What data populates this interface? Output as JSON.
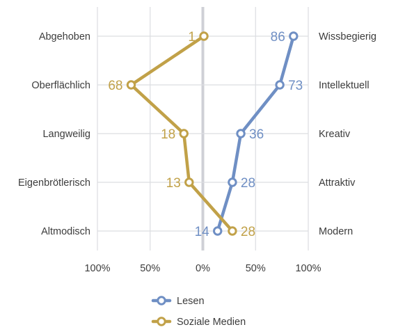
{
  "chart_data": {
    "type": "line",
    "left_labels": [
      "Abgehoben",
      "Oberflächlich",
      "Langweilig",
      "Eigenbrötlerisch",
      "Altmodisch"
    ],
    "right_labels": [
      "Wissbegierig",
      "Intellektuell",
      "Kreativ",
      "Attraktiv",
      "Modern"
    ],
    "x_ticks": [
      "100%",
      "50%",
      "0%",
      "50%",
      "100%"
    ],
    "xlim": [
      -100,
      100
    ],
    "series": [
      {
        "name": "Lesen",
        "color": "#6f8fc4",
        "signed_values": [
          86,
          73,
          36,
          28,
          14
        ],
        "labels": [
          "86",
          "73",
          "36",
          "28",
          "14"
        ],
        "label_side": [
          "left",
          "right",
          "right",
          "right",
          "left"
        ]
      },
      {
        "name": "Soziale Medien",
        "color": "#c1a148",
        "signed_values": [
          1,
          -68,
          -18,
          -13,
          28
        ],
        "labels": [
          "1",
          "68",
          "18",
          "13",
          "28"
        ],
        "label_side": [
          "left",
          "left",
          "left",
          "left",
          "right"
        ]
      }
    ],
    "grid": true,
    "legend_position": "bottom-center"
  }
}
